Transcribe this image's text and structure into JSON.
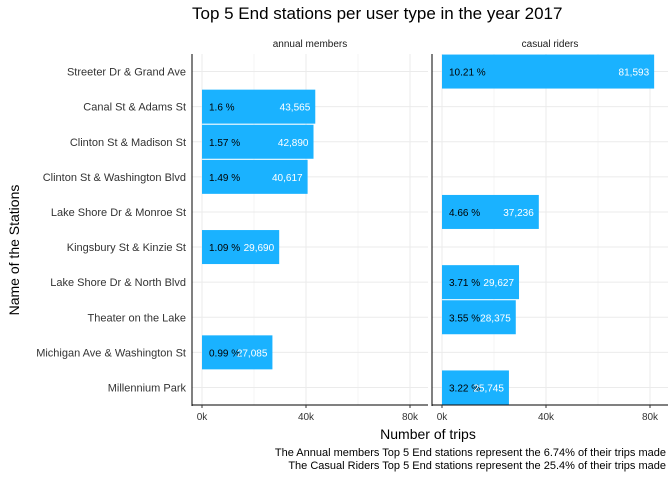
{
  "chart_data": {
    "type": "bar",
    "orientation": "horizontal",
    "title": "Top 5 End stations per user type in the year 2017",
    "xlabel": "Number of trips",
    "ylabel": "Name of the Stations",
    "xlim": [
      0,
      80000
    ],
    "xticks": [
      0,
      40000,
      80000
    ],
    "xtick_labels": [
      "0k",
      "40k",
      "80k"
    ],
    "grid": true,
    "bar_color": "#1ab2ff",
    "categories": [
      "Streeter Dr & Grand Ave",
      "Canal St & Adams St",
      "Clinton St & Madison St",
      "Clinton St & Washington Blvd",
      "Lake Shore Dr & Monroe St",
      "Kingsbury St & Kinzie St",
      "Lake Shore Dr & North Blvd",
      "Theater on the Lake",
      "Michigan Ave & Washington St",
      "Millennium Park"
    ],
    "panels": [
      {
        "name": "annual members",
        "values": [
          null,
          43565,
          42890,
          40617,
          null,
          29690,
          null,
          null,
          27085,
          null
        ],
        "value_labels": [
          "",
          "43,565",
          "42,890",
          "40,617",
          "",
          "29,690",
          "",
          "",
          "27,085",
          ""
        ],
        "pct_labels": [
          "",
          "1.6 %",
          "1.57 %",
          "1.49 %",
          "",
          "1.09 %",
          "",
          "",
          "0.99 %",
          ""
        ]
      },
      {
        "name": "casual riders",
        "values": [
          81593,
          null,
          null,
          null,
          37236,
          null,
          29627,
          28375,
          null,
          25745
        ],
        "value_labels": [
          "81,593",
          "",
          "",
          "",
          "37,236",
          "",
          "29,627",
          "28,375",
          "",
          "25,745"
        ],
        "pct_labels": [
          "10.21 %",
          "",
          "",
          "",
          "4.66 %",
          "",
          "3.71 %",
          "3.55 %",
          "",
          "3.22 %"
        ]
      }
    ],
    "captions": [
      "The Annual members Top 5 End stations represent the 6.74% of their trips made",
      "The Casual Riders Top 5 End stations represent the 25.4% of their trips made"
    ]
  }
}
